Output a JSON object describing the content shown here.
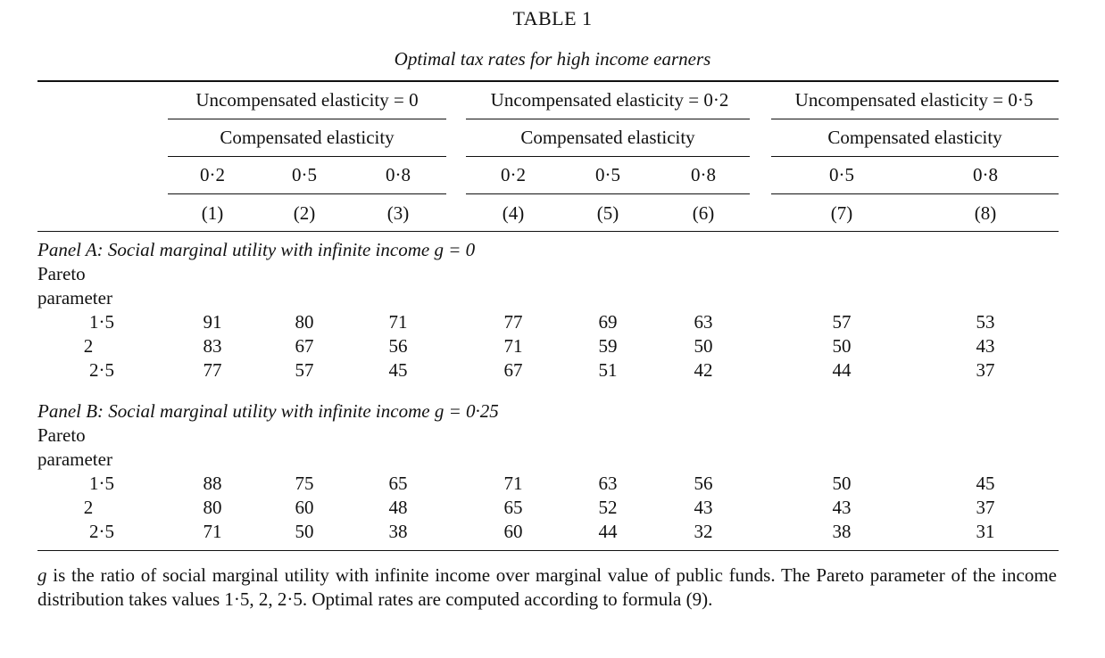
{
  "table": {
    "title": "TABLE 1",
    "subtitle": "Optimal tax rates for high income earners",
    "groups": [
      {
        "header": "Uncompensated elasticity = 0",
        "sub": "Compensated elasticity"
      },
      {
        "header": "Uncompensated elasticity = 0·2",
        "sub": "Compensated elasticity"
      },
      {
        "header": "Uncompensated elasticity = 0·5",
        "sub": "Compensated elasticity"
      }
    ],
    "elasticities": [
      "0·2",
      "0·5",
      "0·8",
      "0·2",
      "0·5",
      "0·8",
      "0·5",
      "0·8"
    ],
    "column_numbers": [
      "(1)",
      "(2)",
      "(3)",
      "(4)",
      "(5)",
      "(6)",
      "(7)",
      "(8)"
    ],
    "panels": [
      {
        "title": "Panel A: Social marginal utility with infinite income g = 0",
        "row_label_line1": "Pareto",
        "row_label_line2": "parameter",
        "rows": [
          {
            "param": "1·5",
            "values": [
              "91",
              "80",
              "71",
              "77",
              "69",
              "63",
              "57",
              "53"
            ]
          },
          {
            "param": "2",
            "values": [
              "83",
              "67",
              "56",
              "71",
              "59",
              "50",
              "50",
              "43"
            ]
          },
          {
            "param": "2·5",
            "values": [
              "77",
              "57",
              "45",
              "67",
              "51",
              "42",
              "44",
              "37"
            ]
          }
        ]
      },
      {
        "title": "Panel B: Social marginal utility with infinite income g = 0·25",
        "row_label_line1": "Pareto",
        "row_label_line2": "parameter",
        "rows": [
          {
            "param": "1·5",
            "values": [
              "88",
              "75",
              "65",
              "71",
              "63",
              "56",
              "50",
              "45"
            ]
          },
          {
            "param": "2",
            "values": [
              "80",
              "60",
              "48",
              "65",
              "52",
              "43",
              "43",
              "37"
            ]
          },
          {
            "param": "2·5",
            "values": [
              "71",
              "50",
              "38",
              "60",
              "44",
              "32",
              "38",
              "31"
            ]
          }
        ]
      }
    ],
    "note": {
      "g": "g",
      "text": " is the ratio of social marginal utility with infinite income over marginal value of public funds. The Pareto parameter of the income distribution takes values 1·5, 2, 2·5. Optimal rates are computed according to formula (9)."
    }
  }
}
